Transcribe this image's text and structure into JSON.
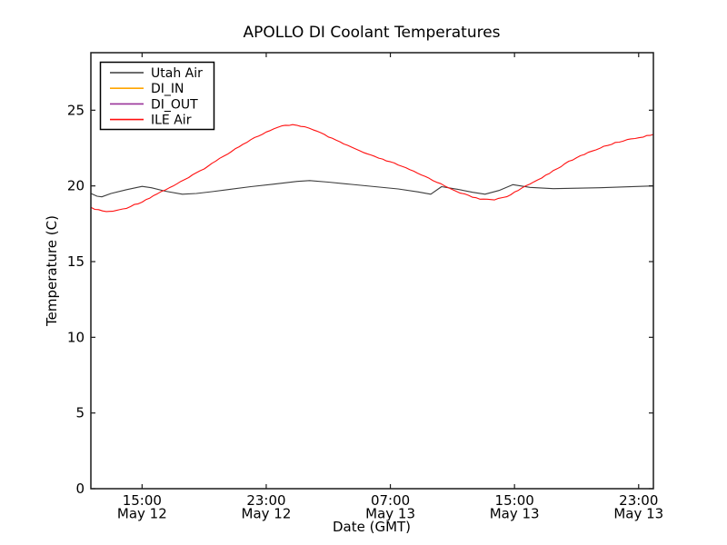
{
  "figure": {
    "background": "#ffffff"
  },
  "chart_data": {
    "type": "line",
    "title": "APOLLO DI Coolant Temperatures",
    "xlabel": "Date (GMT)",
    "ylabel": "Temperature (C)",
    "grid": false,
    "legend_position": "upper left",
    "ylim": [
      0,
      28.8
    ],
    "xlim_hours_since_may12_0000": [
      11.7,
      47.95
    ],
    "y_ticks": [
      0,
      5,
      10,
      15,
      20,
      25
    ],
    "x_ticks": [
      {
        "hour": 15,
        "time": "15:00",
        "date": "May 12"
      },
      {
        "hour": 23,
        "time": "23:00",
        "date": "May 12"
      },
      {
        "hour": 31,
        "time": "07:00",
        "date": "May 13"
      },
      {
        "hour": 39,
        "time": "15:00",
        "date": "May 13"
      },
      {
        "hour": 47,
        "time": "23:00",
        "date": "May 13"
      }
    ],
    "series": [
      {
        "name": "Utah Air",
        "color": "#3c3c3c",
        "noisy": false,
        "points": [
          [
            11.7,
            19.5
          ],
          [
            12.1,
            19.32
          ],
          [
            12.4,
            19.28
          ],
          [
            13.0,
            19.5
          ],
          [
            14.0,
            19.75
          ],
          [
            15.0,
            19.97
          ],
          [
            15.6,
            19.88
          ],
          [
            16.5,
            19.65
          ],
          [
            17.6,
            19.45
          ],
          [
            18.5,
            19.5
          ],
          [
            19.5,
            19.62
          ],
          [
            20.5,
            19.75
          ],
          [
            22.0,
            19.95
          ],
          [
            23.5,
            20.12
          ],
          [
            25.0,
            20.3
          ],
          [
            25.8,
            20.35
          ],
          [
            27.0,
            20.25
          ],
          [
            28.5,
            20.1
          ],
          [
            30.0,
            19.95
          ],
          [
            31.5,
            19.8
          ],
          [
            32.8,
            19.6
          ],
          [
            33.6,
            19.45
          ],
          [
            34.3,
            19.95
          ],
          [
            35.3,
            19.78
          ],
          [
            36.3,
            19.58
          ],
          [
            37.1,
            19.45
          ],
          [
            38.0,
            19.7
          ],
          [
            38.9,
            20.08
          ],
          [
            40.0,
            19.9
          ],
          [
            41.5,
            19.82
          ],
          [
            43.0,
            19.85
          ],
          [
            44.5,
            19.88
          ],
          [
            46.0,
            19.93
          ],
          [
            47.95,
            20.0
          ]
        ]
      },
      {
        "name": "DI_IN",
        "color": "#ffa500",
        "noisy": false,
        "points": []
      },
      {
        "name": "DI_OUT",
        "color": "#993399",
        "noisy": false,
        "points": []
      },
      {
        "name": "ILE Air",
        "color": "#ff1010",
        "noisy": true,
        "points": [
          [
            11.7,
            18.55
          ],
          [
            12.2,
            18.4
          ],
          [
            12.7,
            18.3
          ],
          [
            13.3,
            18.35
          ],
          [
            14.0,
            18.55
          ],
          [
            15.0,
            18.95
          ],
          [
            16.0,
            19.5
          ],
          [
            17.0,
            20.0
          ],
          [
            18.0,
            20.55
          ],
          [
            19.0,
            21.15
          ],
          [
            20.0,
            21.8
          ],
          [
            21.0,
            22.45
          ],
          [
            22.0,
            23.05
          ],
          [
            23.0,
            23.55
          ],
          [
            24.0,
            23.95
          ],
          [
            24.7,
            24.05
          ],
          [
            25.5,
            23.9
          ],
          [
            26.5,
            23.5
          ],
          [
            27.5,
            23.0
          ],
          [
            28.5,
            22.55
          ],
          [
            29.5,
            22.1
          ],
          [
            30.5,
            21.75
          ],
          [
            31.5,
            21.4
          ],
          [
            32.5,
            20.95
          ],
          [
            33.5,
            20.5
          ],
          [
            34.5,
            20.0
          ],
          [
            35.5,
            19.55
          ],
          [
            36.3,
            19.25
          ],
          [
            37.0,
            19.1
          ],
          [
            37.7,
            19.1
          ],
          [
            38.5,
            19.3
          ],
          [
            39.5,
            19.85
          ],
          [
            40.5,
            20.4
          ],
          [
            41.5,
            21.0
          ],
          [
            42.5,
            21.6
          ],
          [
            43.5,
            22.1
          ],
          [
            44.5,
            22.5
          ],
          [
            45.5,
            22.85
          ],
          [
            46.5,
            23.1
          ],
          [
            47.3,
            23.25
          ],
          [
            47.95,
            23.4
          ]
        ]
      }
    ]
  }
}
